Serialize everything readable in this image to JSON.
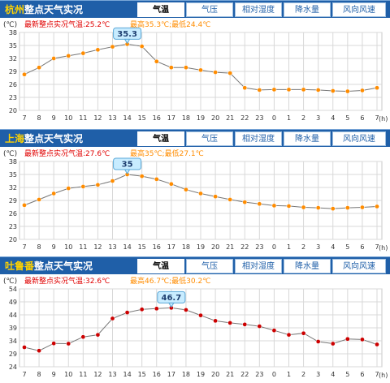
{
  "tabs": [
    "气温",
    "气压",
    "相对湿度",
    "降水量",
    "风向风速"
  ],
  "colors": {
    "header_bg": "#1f5fa8",
    "city": "#ffd200",
    "latest": "#e00000",
    "range": "#ff8c00",
    "line": "#777777",
    "grid": "#d8d8d8"
  },
  "panels": [
    {
      "city": "杭州",
      "title_rest": "整点天气实况",
      "unit": "(℃)",
      "latest_text": "最新整点实况气温:25.2℃",
      "range_text": "最高35.3℃;最低24.4℃",
      "x_unit": "(h)",
      "chart_data": {
        "type": "line",
        "categories": [
          "7",
          "8",
          "9",
          "10",
          "11",
          "12",
          "13",
          "14",
          "15",
          "16",
          "17",
          "18",
          "19",
          "20",
          "21",
          "22",
          "23",
          "0",
          "1",
          "2",
          "3",
          "4",
          "5",
          "6",
          "7"
        ],
        "values": [
          28.3,
          29.9,
          32.0,
          32.6,
          33.2,
          34.0,
          34.7,
          35.3,
          34.8,
          31.3,
          29.9,
          29.9,
          29.3,
          28.8,
          28.6,
          25.2,
          24.7,
          24.8,
          24.8,
          24.8,
          24.7,
          24.5,
          24.4,
          24.6,
          25.2
        ],
        "ylim": [
          20,
          38
        ],
        "yticks": [
          "20",
          "23",
          "26",
          "29",
          "32",
          "35",
          "38"
        ],
        "marker_color": "#ff8c00",
        "callout": "35.3",
        "callout_index": 7
      }
    },
    {
      "city": "上海",
      "title_rest": "整点天气实况",
      "unit": "(℃)",
      "latest_text": "最新整点实况气温:27.6℃",
      "range_text": "最高35℃;最低27.1℃",
      "x_unit": "(h)",
      "chart_data": {
        "type": "line",
        "categories": [
          "7",
          "8",
          "9",
          "10",
          "11",
          "12",
          "13",
          "14",
          "15",
          "16",
          "17",
          "18",
          "19",
          "20",
          "21",
          "22",
          "23",
          "0",
          "1",
          "2",
          "3",
          "4",
          "5",
          "6",
          "7"
        ],
        "values": [
          27.9,
          29.2,
          30.6,
          31.8,
          32.2,
          32.6,
          33.5,
          35.0,
          34.6,
          33.9,
          32.8,
          31.5,
          30.6,
          29.9,
          29.2,
          28.6,
          28.2,
          27.8,
          27.7,
          27.4,
          27.3,
          27.1,
          27.3,
          27.4,
          27.6
        ],
        "ylim": [
          20,
          38
        ],
        "yticks": [
          "20",
          "23",
          "26",
          "29",
          "32",
          "35",
          "38"
        ],
        "marker_color": "#ff8c00",
        "callout": "35",
        "callout_index": 7
      }
    },
    {
      "city": "吐鲁番",
      "title_rest": "整点天气实况",
      "unit": "(℃)",
      "latest_text": "最新整点实况气温:32.6℃",
      "range_text": "最高46.7℃;最低30.2℃",
      "x_unit": "(h)",
      "chart_data": {
        "type": "line",
        "categories": [
          "7",
          "8",
          "9",
          "10",
          "11",
          "12",
          "13",
          "14",
          "15",
          "16",
          "17",
          "18",
          "19",
          "20",
          "21",
          "22",
          "23",
          "0",
          "1",
          "2",
          "3",
          "4",
          "5",
          "6",
          "7"
        ],
        "values": [
          31.5,
          30.2,
          33.0,
          32.9,
          35.5,
          36.3,
          42.6,
          44.9,
          46.1,
          46.4,
          46.7,
          45.9,
          43.8,
          41.7,
          40.9,
          40.3,
          39.6,
          38.0,
          36.3,
          36.9,
          33.7,
          32.9,
          34.7,
          34.5,
          32.6
        ],
        "ylim": [
          24,
          54
        ],
        "yticks": [
          "24",
          "29",
          "34",
          "39",
          "44",
          "49",
          "54"
        ],
        "marker_color": "#cc0000",
        "callout": "46.7",
        "callout_index": 10
      }
    }
  ]
}
